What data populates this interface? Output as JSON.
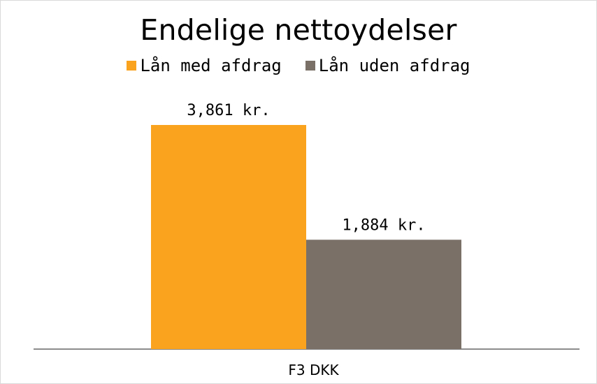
{
  "chart_data": {
    "type": "bar",
    "title": "Endelige nettoydelser",
    "categories": [
      "F3 DKK"
    ],
    "series": [
      {
        "name": "Lån med afdrag",
        "values": [
          3861
        ],
        "label": "3,861 kr.",
        "color": "#F9A31E"
      },
      {
        "name": "Lån uden afdrag",
        "values": [
          1884
        ],
        "label": "1,884 kr.",
        "color": "#7B7067"
      }
    ],
    "xlabel": "",
    "ylabel": "",
    "ylim": [
      0,
      4500
    ],
    "grid": false,
    "legend": "top"
  }
}
